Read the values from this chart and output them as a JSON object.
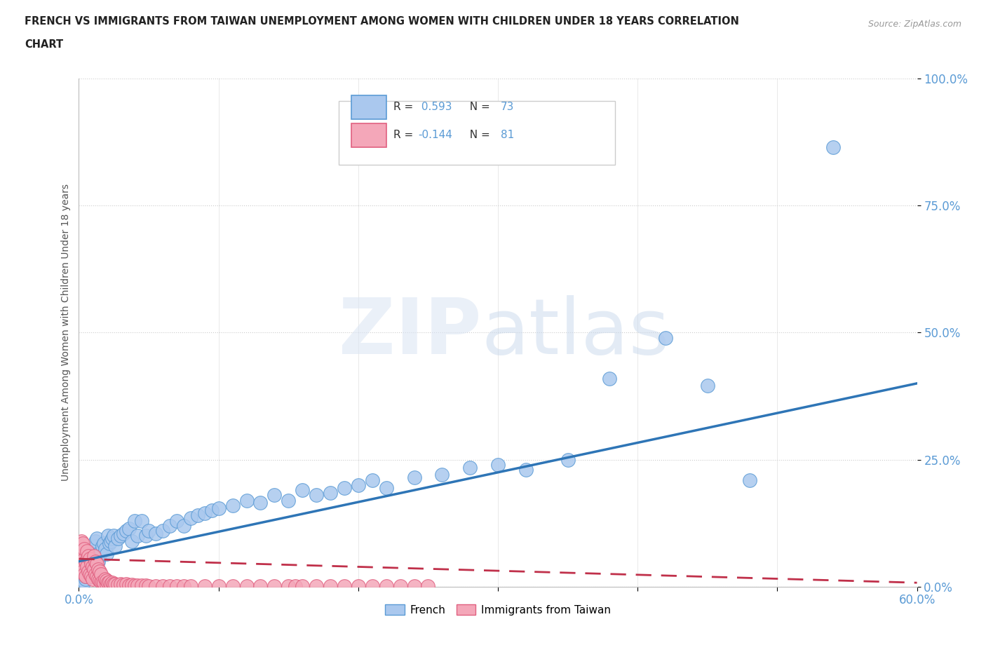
{
  "title_line1": "FRENCH VS IMMIGRANTS FROM TAIWAN UNEMPLOYMENT AMONG WOMEN WITH CHILDREN UNDER 18 YEARS CORRELATION",
  "title_line2": "CHART",
  "source": "Source: ZipAtlas.com",
  "ylabel": "Unemployment Among Women with Children Under 18 years",
  "xlim": [
    0,
    0.6
  ],
  "ylim": [
    0,
    1.0
  ],
  "french_R": 0.593,
  "french_N": 73,
  "taiwan_R": -0.144,
  "taiwan_N": 81,
  "french_color": "#aac8ee",
  "french_edge_color": "#5b9bd5",
  "taiwan_color": "#f4a7b9",
  "taiwan_edge_color": "#e06080",
  "french_line_color": "#2e75b6",
  "taiwan_line_color": "#c0304a",
  "background_color": "#ffffff",
  "french_x": [
    0.002,
    0.003,
    0.004,
    0.005,
    0.005,
    0.006,
    0.007,
    0.008,
    0.008,
    0.009,
    0.01,
    0.01,
    0.011,
    0.012,
    0.012,
    0.013,
    0.014,
    0.015,
    0.016,
    0.017,
    0.018,
    0.019,
    0.02,
    0.021,
    0.022,
    0.023,
    0.024,
    0.025,
    0.026,
    0.028,
    0.03,
    0.032,
    0.034,
    0.036,
    0.038,
    0.04,
    0.042,
    0.045,
    0.048,
    0.05,
    0.055,
    0.06,
    0.065,
    0.07,
    0.075,
    0.08,
    0.085,
    0.09,
    0.095,
    0.1,
    0.11,
    0.12,
    0.13,
    0.14,
    0.15,
    0.16,
    0.17,
    0.18,
    0.19,
    0.2,
    0.21,
    0.22,
    0.24,
    0.26,
    0.28,
    0.3,
    0.32,
    0.35,
    0.38,
    0.42,
    0.45,
    0.48,
    0.54
  ],
  "french_y": [
    0.005,
    0.008,
    0.01,
    0.015,
    0.02,
    0.025,
    0.03,
    0.035,
    0.04,
    0.045,
    0.05,
    0.06,
    0.07,
    0.08,
    0.09,
    0.095,
    0.05,
    0.06,
    0.07,
    0.08,
    0.085,
    0.075,
    0.065,
    0.1,
    0.085,
    0.09,
    0.095,
    0.1,
    0.08,
    0.095,
    0.1,
    0.105,
    0.11,
    0.115,
    0.09,
    0.13,
    0.1,
    0.13,
    0.1,
    0.11,
    0.105,
    0.11,
    0.12,
    0.13,
    0.12,
    0.135,
    0.14,
    0.145,
    0.15,
    0.155,
    0.16,
    0.17,
    0.165,
    0.18,
    0.17,
    0.19,
    0.18,
    0.185,
    0.195,
    0.2,
    0.21,
    0.195,
    0.215,
    0.22,
    0.235,
    0.24,
    0.23,
    0.25,
    0.41,
    0.49,
    0.395,
    0.21,
    0.865
  ],
  "taiwan_x": [
    0.001,
    0.001,
    0.002,
    0.002,
    0.002,
    0.003,
    0.003,
    0.003,
    0.004,
    0.004,
    0.004,
    0.005,
    0.005,
    0.006,
    0.006,
    0.007,
    0.007,
    0.008,
    0.008,
    0.009,
    0.009,
    0.01,
    0.01,
    0.011,
    0.011,
    0.012,
    0.012,
    0.013,
    0.013,
    0.014,
    0.014,
    0.015,
    0.015,
    0.016,
    0.016,
    0.017,
    0.018,
    0.019,
    0.02,
    0.02,
    0.021,
    0.022,
    0.023,
    0.024,
    0.025,
    0.026,
    0.028,
    0.03,
    0.032,
    0.034,
    0.036,
    0.038,
    0.04,
    0.042,
    0.045,
    0.048,
    0.05,
    0.055,
    0.06,
    0.065,
    0.07,
    0.075,
    0.08,
    0.09,
    0.1,
    0.11,
    0.12,
    0.13,
    0.14,
    0.15,
    0.155,
    0.16,
    0.17,
    0.18,
    0.19,
    0.2,
    0.21,
    0.22,
    0.23,
    0.24,
    0.25
  ],
  "taiwan_y": [
    0.05,
    0.08,
    0.04,
    0.065,
    0.09,
    0.03,
    0.06,
    0.085,
    0.025,
    0.055,
    0.075,
    0.02,
    0.05,
    0.04,
    0.07,
    0.03,
    0.06,
    0.025,
    0.055,
    0.02,
    0.045,
    0.015,
    0.04,
    0.035,
    0.06,
    0.025,
    0.05,
    0.02,
    0.045,
    0.015,
    0.035,
    0.012,
    0.03,
    0.01,
    0.025,
    0.01,
    0.008,
    0.015,
    0.006,
    0.012,
    0.008,
    0.01,
    0.005,
    0.008,
    0.005,
    0.006,
    0.004,
    0.005,
    0.004,
    0.005,
    0.003,
    0.004,
    0.003,
    0.003,
    0.003,
    0.003,
    0.002,
    0.002,
    0.002,
    0.002,
    0.002,
    0.002,
    0.001,
    0.001,
    0.001,
    0.001,
    0.001,
    0.001,
    0.001,
    0.001,
    0.001,
    0.001,
    0.001,
    0.001,
    0.001,
    0.001,
    0.001,
    0.001,
    0.001,
    0.001,
    0.001
  ]
}
